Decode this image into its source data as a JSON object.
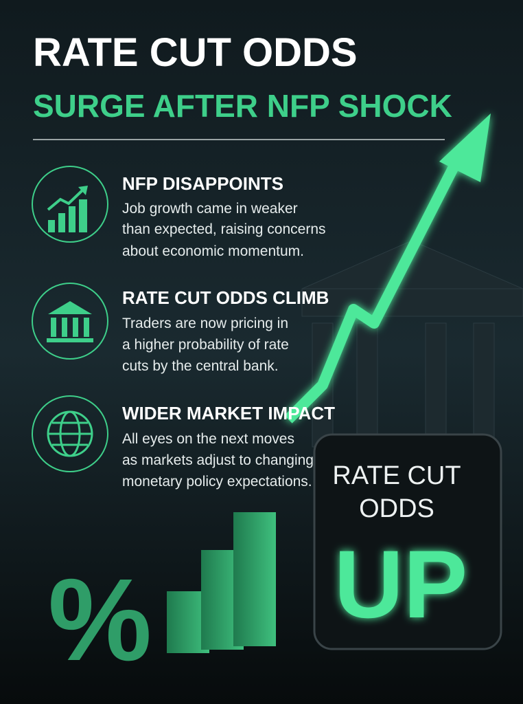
{
  "header": {
    "title": "RATE CUT ODDS",
    "subtitle": "SURGE AFTER NFP SHOCK"
  },
  "items": [
    {
      "heading": "NFP DISAPPOINTS",
      "lines": [
        "Job growth came in weaker",
        "than expected, raising concerns",
        "about economic momentum."
      ]
    },
    {
      "heading": "RATE CUT ODDS CLIMB",
      "lines": [
        "Traders are now pricing in",
        "a higher probability of rate",
        "cuts by the central bank."
      ]
    },
    {
      "heading": "WIDER MARKET IMPACT",
      "lines": [
        "All eyes on the next moves",
        "as markets adjust to changing",
        "monetary policy expectations."
      ]
    }
  ],
  "sign": {
    "lines": [
      "RATE CUT",
      "ODDS"
    ],
    "big": "UP"
  },
  "decor": {
    "symbol": "%"
  }
}
